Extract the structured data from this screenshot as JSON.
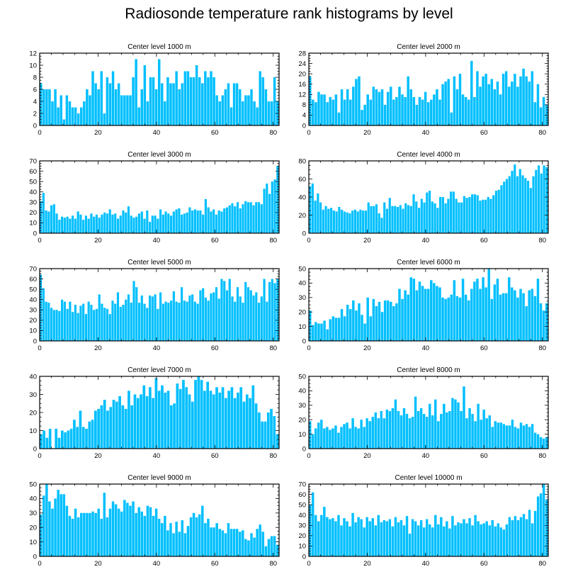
{
  "page": {
    "title": "Radiosonde temperature rank histograms by level"
  },
  "style": {
    "bar_color": "#00BFFF",
    "bar_outline": "#ffffff",
    "axis_color": "#000000"
  },
  "chart_data": [
    {
      "type": "bar",
      "title": "Center level 1000 m",
      "xlabel": "",
      "ylabel": "",
      "xlim": [
        0,
        82
      ],
      "ylim": [
        0,
        12
      ],
      "xticks": [
        0,
        20,
        40,
        60,
        80
      ],
      "xtick_labels": [
        "0",
        "20",
        "40",
        "60",
        "80"
      ],
      "yticks": [
        0,
        2,
        4,
        6,
        8,
        10,
        12
      ],
      "ytick_labels": [
        "0",
        "2",
        "4",
        "6",
        "8",
        "10",
        "12"
      ],
      "values": [
        7,
        6,
        6,
        6,
        4,
        6,
        3,
        5,
        1,
        5,
        4,
        3,
        3,
        2,
        3,
        4,
        6,
        5,
        9,
        7,
        6,
        9,
        2,
        8,
        7,
        9,
        6,
        7,
        5,
        5,
        5,
        5,
        8,
        11,
        3,
        6,
        10,
        4,
        8,
        8,
        6,
        11,
        7,
        4,
        8,
        7,
        7,
        9,
        6,
        7,
        9,
        9,
        8,
        8,
        10,
        8,
        7,
        9,
        8,
        9,
        8,
        5,
        4,
        5,
        6,
        7,
        3,
        7,
        7,
        6,
        4,
        5,
        5,
        6,
        4,
        3,
        9,
        8,
        6,
        4,
        4,
        8,
        4
      ]
    },
    {
      "type": "bar",
      "title": "Center level 2000 m",
      "xlabel": "",
      "ylabel": "",
      "xlim": [
        0,
        82
      ],
      "ylim": [
        0,
        28
      ],
      "xticks": [
        0,
        20,
        40,
        60,
        80
      ],
      "xtick_labels": [
        "0",
        "20",
        "40",
        "60",
        "80"
      ],
      "yticks": [
        0,
        4,
        8,
        12,
        16,
        20,
        24,
        28
      ],
      "ytick_labels": [
        "0",
        "4",
        "8",
        "12",
        "16",
        "20",
        "24",
        "28"
      ],
      "values": [
        19,
        10,
        9,
        13,
        12,
        12,
        9,
        11,
        10,
        12,
        5,
        14,
        10,
        14,
        10,
        15,
        18,
        19,
        6,
        8,
        12,
        10,
        15,
        14,
        13,
        14,
        8,
        13,
        15,
        10,
        11,
        15,
        12,
        11,
        19,
        14,
        11,
        8,
        11,
        10,
        13,
        9,
        10,
        12,
        14,
        10,
        16,
        17,
        18,
        5,
        19,
        14,
        20,
        12,
        11,
        10,
        25,
        11,
        21,
        15,
        19,
        20,
        16,
        18,
        14,
        17,
        12,
        20,
        21,
        15,
        17,
        20,
        15,
        19,
        22,
        19,
        17,
        21,
        9,
        16,
        7,
        11,
        8
      ]
    },
    {
      "type": "bar",
      "title": "Center level 3000 m",
      "xlabel": "",
      "ylabel": "",
      "xlim": [
        0,
        82
      ],
      "ylim": [
        0,
        70
      ],
      "xticks": [
        0,
        20,
        40,
        60,
        80
      ],
      "xtick_labels": [
        "0",
        "20",
        "40",
        "60",
        "80"
      ],
      "yticks": [
        0,
        10,
        20,
        30,
        40,
        50,
        60,
        70
      ],
      "ytick_labels": [
        "0",
        "10",
        "20",
        "30",
        "40",
        "50",
        "60",
        "70"
      ],
      "values": [
        31,
        39,
        22,
        21,
        27,
        28,
        19,
        13,
        16,
        15,
        16,
        14,
        17,
        14,
        21,
        18,
        13,
        17,
        14,
        19,
        16,
        18,
        15,
        18,
        20,
        19,
        23,
        18,
        19,
        14,
        17,
        22,
        20,
        26,
        17,
        15,
        16,
        19,
        21,
        14,
        22,
        11,
        17,
        17,
        14,
        23,
        18,
        21,
        19,
        17,
        21,
        23,
        24,
        18,
        19,
        20,
        25,
        22,
        23,
        22,
        22,
        18,
        33,
        25,
        21,
        23,
        18,
        22,
        21,
        24,
        25,
        27,
        29,
        26,
        30,
        24,
        28,
        31,
        30,
        30,
        27,
        30,
        30,
        28,
        43,
        48,
        38,
        50,
        52,
        65
      ]
    },
    {
      "type": "bar",
      "title": "Center level 4000 m",
      "xlabel": "",
      "ylabel": "",
      "xlim": [
        0,
        82
      ],
      "ylim": [
        0,
        80
      ],
      "xticks": [
        0,
        20,
        40,
        60,
        80
      ],
      "xtick_labels": [
        "0",
        "20",
        "40",
        "60",
        "80"
      ],
      "yticks": [
        0,
        20,
        40,
        60,
        80
      ],
      "ytick_labels": [
        "0",
        "20",
        "40",
        "60",
        "80"
      ],
      "values": [
        52,
        55,
        36,
        44,
        34,
        26,
        30,
        27,
        28,
        25,
        24,
        29,
        26,
        24,
        23,
        22,
        25,
        26,
        24,
        26,
        25,
        25,
        34,
        30,
        30,
        32,
        22,
        17,
        34,
        27,
        39,
        30,
        30,
        29,
        31,
        27,
        33,
        31,
        30,
        43,
        35,
        28,
        38,
        34,
        45,
        47,
        35,
        33,
        28,
        40,
        40,
        33,
        38,
        46,
        46,
        38,
        34,
        34,
        41,
        39,
        40,
        43,
        43,
        42,
        36,
        37,
        37,
        40,
        38,
        42,
        47,
        48,
        53,
        57,
        60,
        63,
        69,
        76,
        63,
        71,
        64,
        61,
        58,
        50,
        63,
        70,
        75,
        66,
        75,
        73
      ]
    },
    {
      "type": "bar",
      "title": "Center level 5000 m",
      "xlabel": "",
      "ylabel": "",
      "xlim": [
        0,
        82
      ],
      "ylim": [
        0,
        70
      ],
      "xticks": [
        0,
        20,
        40,
        60,
        80
      ],
      "xtick_labels": [
        "0",
        "20",
        "40",
        "60",
        "80"
      ],
      "yticks": [
        0,
        10,
        20,
        30,
        40,
        50,
        60,
        70
      ],
      "ytick_labels": [
        "0",
        "10",
        "20",
        "30",
        "40",
        "50",
        "60",
        "70"
      ],
      "values": [
        64,
        51,
        38,
        37,
        32,
        30,
        30,
        29,
        40,
        38,
        31,
        38,
        28,
        35,
        27,
        34,
        36,
        26,
        38,
        35,
        30,
        31,
        45,
        36,
        32,
        31,
        26,
        39,
        36,
        47,
        33,
        35,
        40,
        45,
        37,
        58,
        52,
        37,
        44,
        36,
        32,
        44,
        43,
        45,
        31,
        47,
        36,
        38,
        37,
        39,
        48,
        38,
        37,
        52,
        39,
        38,
        44,
        45,
        38,
        36,
        49,
        51,
        42,
        39,
        46,
        47,
        52,
        41,
        60,
        58,
        49,
        60,
        43,
        38,
        52,
        43,
        37,
        57,
        52,
        49,
        44,
        47,
        37,
        43,
        60,
        38,
        57,
        60,
        56,
        60
      ]
    },
    {
      "type": "bar",
      "title": "Center level 6000 m",
      "xlabel": "",
      "ylabel": "",
      "xlim": [
        0,
        82
      ],
      "ylim": [
        0,
        50
      ],
      "xticks": [
        0,
        20,
        40,
        60,
        80
      ],
      "xtick_labels": [
        "0",
        "20",
        "40",
        "60",
        "80"
      ],
      "yticks": [
        0,
        10,
        20,
        30,
        40,
        50
      ],
      "ytick_labels": [
        "0",
        "10",
        "20",
        "30",
        "40",
        "50"
      ],
      "values": [
        21,
        11,
        13,
        12,
        12,
        14,
        8,
        15,
        17,
        16,
        16,
        22,
        17,
        25,
        22,
        28,
        21,
        26,
        18,
        12,
        30,
        17,
        29,
        24,
        27,
        20,
        28,
        28,
        27,
        24,
        26,
        36,
        29,
        35,
        32,
        44,
        43,
        35,
        41,
        38,
        36,
        36,
        42,
        40,
        38,
        37,
        30,
        29,
        30,
        32,
        42,
        31,
        30,
        43,
        32,
        28,
        36,
        41,
        43,
        36,
        44,
        37,
        50,
        29,
        39,
        43,
        32,
        33,
        33,
        44,
        37,
        35,
        30,
        36,
        33,
        24,
        35,
        36,
        31,
        43,
        26,
        21,
        26
      ]
    },
    {
      "type": "bar",
      "title": "Center level 7000 m",
      "xlabel": "",
      "ylabel": "",
      "xlim": [
        0,
        82
      ],
      "ylim": [
        0,
        40
      ],
      "xticks": [
        0,
        20,
        40,
        60,
        80
      ],
      "xtick_labels": [
        "0",
        "20",
        "40",
        "60",
        "80"
      ],
      "yticks": [
        0,
        10,
        20,
        30,
        40
      ],
      "ytick_labels": [
        "0",
        "10",
        "20",
        "30",
        "40"
      ],
      "values": [
        8,
        10,
        6,
        11,
        0,
        11,
        6,
        10,
        9,
        10,
        11,
        16,
        12,
        21,
        12,
        11,
        15,
        16,
        21,
        22,
        24,
        27,
        21,
        23,
        27,
        26,
        29,
        24,
        22,
        32,
        24,
        30,
        28,
        30,
        35,
        29,
        34,
        28,
        39,
        32,
        35,
        31,
        32,
        24,
        25,
        36,
        33,
        38,
        34,
        30,
        26,
        38,
        40,
        38,
        32,
        37,
        32,
        30,
        34,
        31,
        34,
        28,
        32,
        34,
        28,
        31,
        34,
        26,
        30,
        28,
        35,
        25,
        20,
        15,
        15,
        20,
        22,
        18,
        8
      ]
    },
    {
      "type": "bar",
      "title": "Center level 8000 m",
      "xlabel": "",
      "ylabel": "",
      "xlim": [
        0,
        82
      ],
      "ylim": [
        0,
        50
      ],
      "xticks": [
        0,
        20,
        40,
        60,
        80
      ],
      "xtick_labels": [
        "0",
        "20",
        "40",
        "60",
        "80"
      ],
      "yticks": [
        0,
        10,
        20,
        30,
        40,
        50
      ],
      "ytick_labels": [
        "0",
        "10",
        "20",
        "30",
        "40",
        "50"
      ],
      "values": [
        19,
        10,
        14,
        18,
        20,
        14,
        15,
        13,
        14,
        16,
        11,
        15,
        17,
        18,
        14,
        21,
        15,
        14,
        20,
        15,
        21,
        19,
        22,
        25,
        21,
        26,
        21,
        27,
        26,
        28,
        34,
        26,
        23,
        28,
        24,
        21,
        22,
        36,
        26,
        28,
        24,
        22,
        31,
        23,
        34,
        19,
        24,
        31,
        25,
        26,
        35,
        34,
        32,
        26,
        43,
        21,
        28,
        24,
        19,
        31,
        20,
        27,
        21,
        23,
        15,
        19,
        18,
        18,
        17,
        16,
        16,
        20,
        15,
        14,
        18,
        16,
        17,
        15,
        17,
        11,
        10,
        8,
        7,
        8
      ]
    },
    {
      "type": "bar",
      "title": "Center level 9000 m",
      "xlabel": "",
      "ylabel": "",
      "xlim": [
        0,
        82
      ],
      "ylim": [
        0,
        50
      ],
      "xticks": [
        0,
        20,
        40,
        60,
        80
      ],
      "xtick_labels": [
        "0",
        "20",
        "40",
        "60",
        "80"
      ],
      "yticks": [
        0,
        10,
        20,
        30,
        40,
        50
      ],
      "ytick_labels": [
        "0",
        "10",
        "20",
        "30",
        "40",
        "50"
      ],
      "values": [
        29,
        42,
        50,
        38,
        33,
        40,
        46,
        43,
        43,
        35,
        28,
        26,
        33,
        27,
        30,
        30,
        30,
        30,
        31,
        30,
        33,
        26,
        44,
        27,
        33,
        38,
        36,
        33,
        31,
        39,
        37,
        35,
        38,
        30,
        34,
        31,
        28,
        35,
        34,
        28,
        33,
        26,
        23,
        28,
        18,
        23,
        16,
        24,
        17,
        25,
        16,
        21,
        27,
        30,
        27,
        29,
        35,
        23,
        26,
        20,
        20,
        23,
        19,
        18,
        16,
        23,
        19,
        19,
        19,
        17,
        18,
        12,
        11,
        16,
        13,
        19,
        22,
        17,
        7,
        12,
        14,
        14,
        8
      ]
    },
    {
      "type": "bar",
      "title": "Center level 10000 m",
      "xlabel": "",
      "ylabel": "",
      "xlim": [
        0,
        82
      ],
      "ylim": [
        0,
        70
      ],
      "xticks": [
        0,
        20,
        40,
        60,
        80
      ],
      "xtick_labels": [
        "0",
        "20",
        "40",
        "60",
        "80"
      ],
      "yticks": [
        0,
        10,
        20,
        30,
        40,
        50,
        60,
        70
      ],
      "ytick_labels": [
        "0",
        "10",
        "20",
        "30",
        "40",
        "50",
        "60",
        "70"
      ],
      "values": [
        50,
        62,
        40,
        34,
        40,
        48,
        38,
        36,
        37,
        34,
        40,
        30,
        37,
        34,
        29,
        42,
        33,
        38,
        36,
        28,
        38,
        34,
        37,
        30,
        40,
        33,
        35,
        34,
        36,
        29,
        38,
        33,
        35,
        30,
        39,
        22,
        36,
        34,
        30,
        35,
        28,
        36,
        31,
        28,
        40,
        31,
        38,
        29,
        34,
        27,
        39,
        30,
        33,
        32,
        36,
        32,
        37,
        30,
        40,
        34,
        31,
        32,
        34,
        30,
        35,
        29,
        32,
        28,
        26,
        31,
        38,
        35,
        39,
        35,
        38,
        41,
        36,
        45,
        32,
        44,
        58,
        61,
        70,
        55
      ]
    }
  ]
}
